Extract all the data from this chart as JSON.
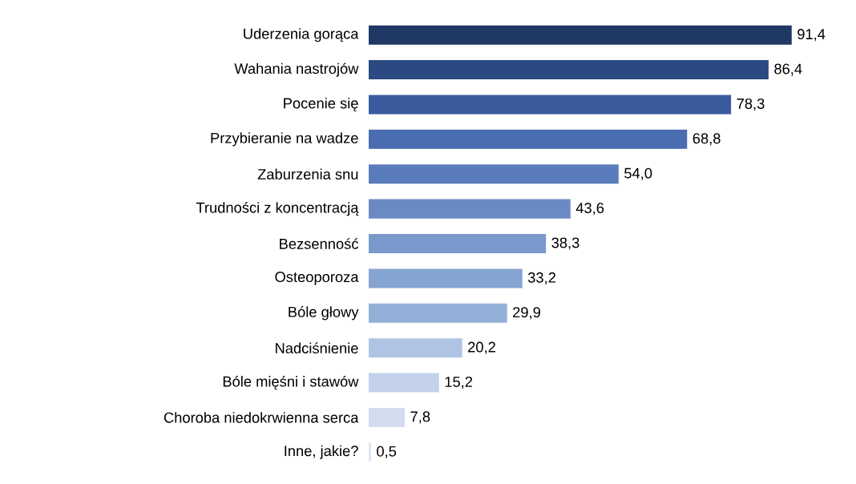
{
  "chart_data": {
    "type": "bar",
    "orientation": "horizontal",
    "categories": [
      "Uderzenia gorąca",
      "Wahania nastrojów",
      "Pocenie się",
      "Przybieranie na wadze",
      "Zaburzenia snu",
      "Trudności z koncentracją",
      "Bezsenność",
      "Osteoporoza",
      "Bóle głowy",
      "Nadciśnienie",
      "Bóle mięśni i stawów",
      "Choroba niedokrwienna serca",
      "Inne, jakie?"
    ],
    "values": [
      91.4,
      86.4,
      78.3,
      68.8,
      54.0,
      43.6,
      38.3,
      33.2,
      29.9,
      20.2,
      15.2,
      7.8,
      0.5
    ],
    "value_labels": [
      "91,4",
      "86,4",
      "78,3",
      "68,8",
      "54,0",
      "43,6",
      "38,3",
      "33,2",
      "29,9",
      "20,2",
      "15,2",
      "7,8",
      "0,5"
    ],
    "colors": [
      "#1f3864",
      "#2b4a82",
      "#3a5c9e",
      "#4a6cb0",
      "#5a7cbc",
      "#6a8ac4",
      "#7a98cc",
      "#86a4d2",
      "#94b0d8",
      "#afc3e2",
      "#c3d2ea",
      "#d3ddef",
      "#dde5f2"
    ]
  }
}
